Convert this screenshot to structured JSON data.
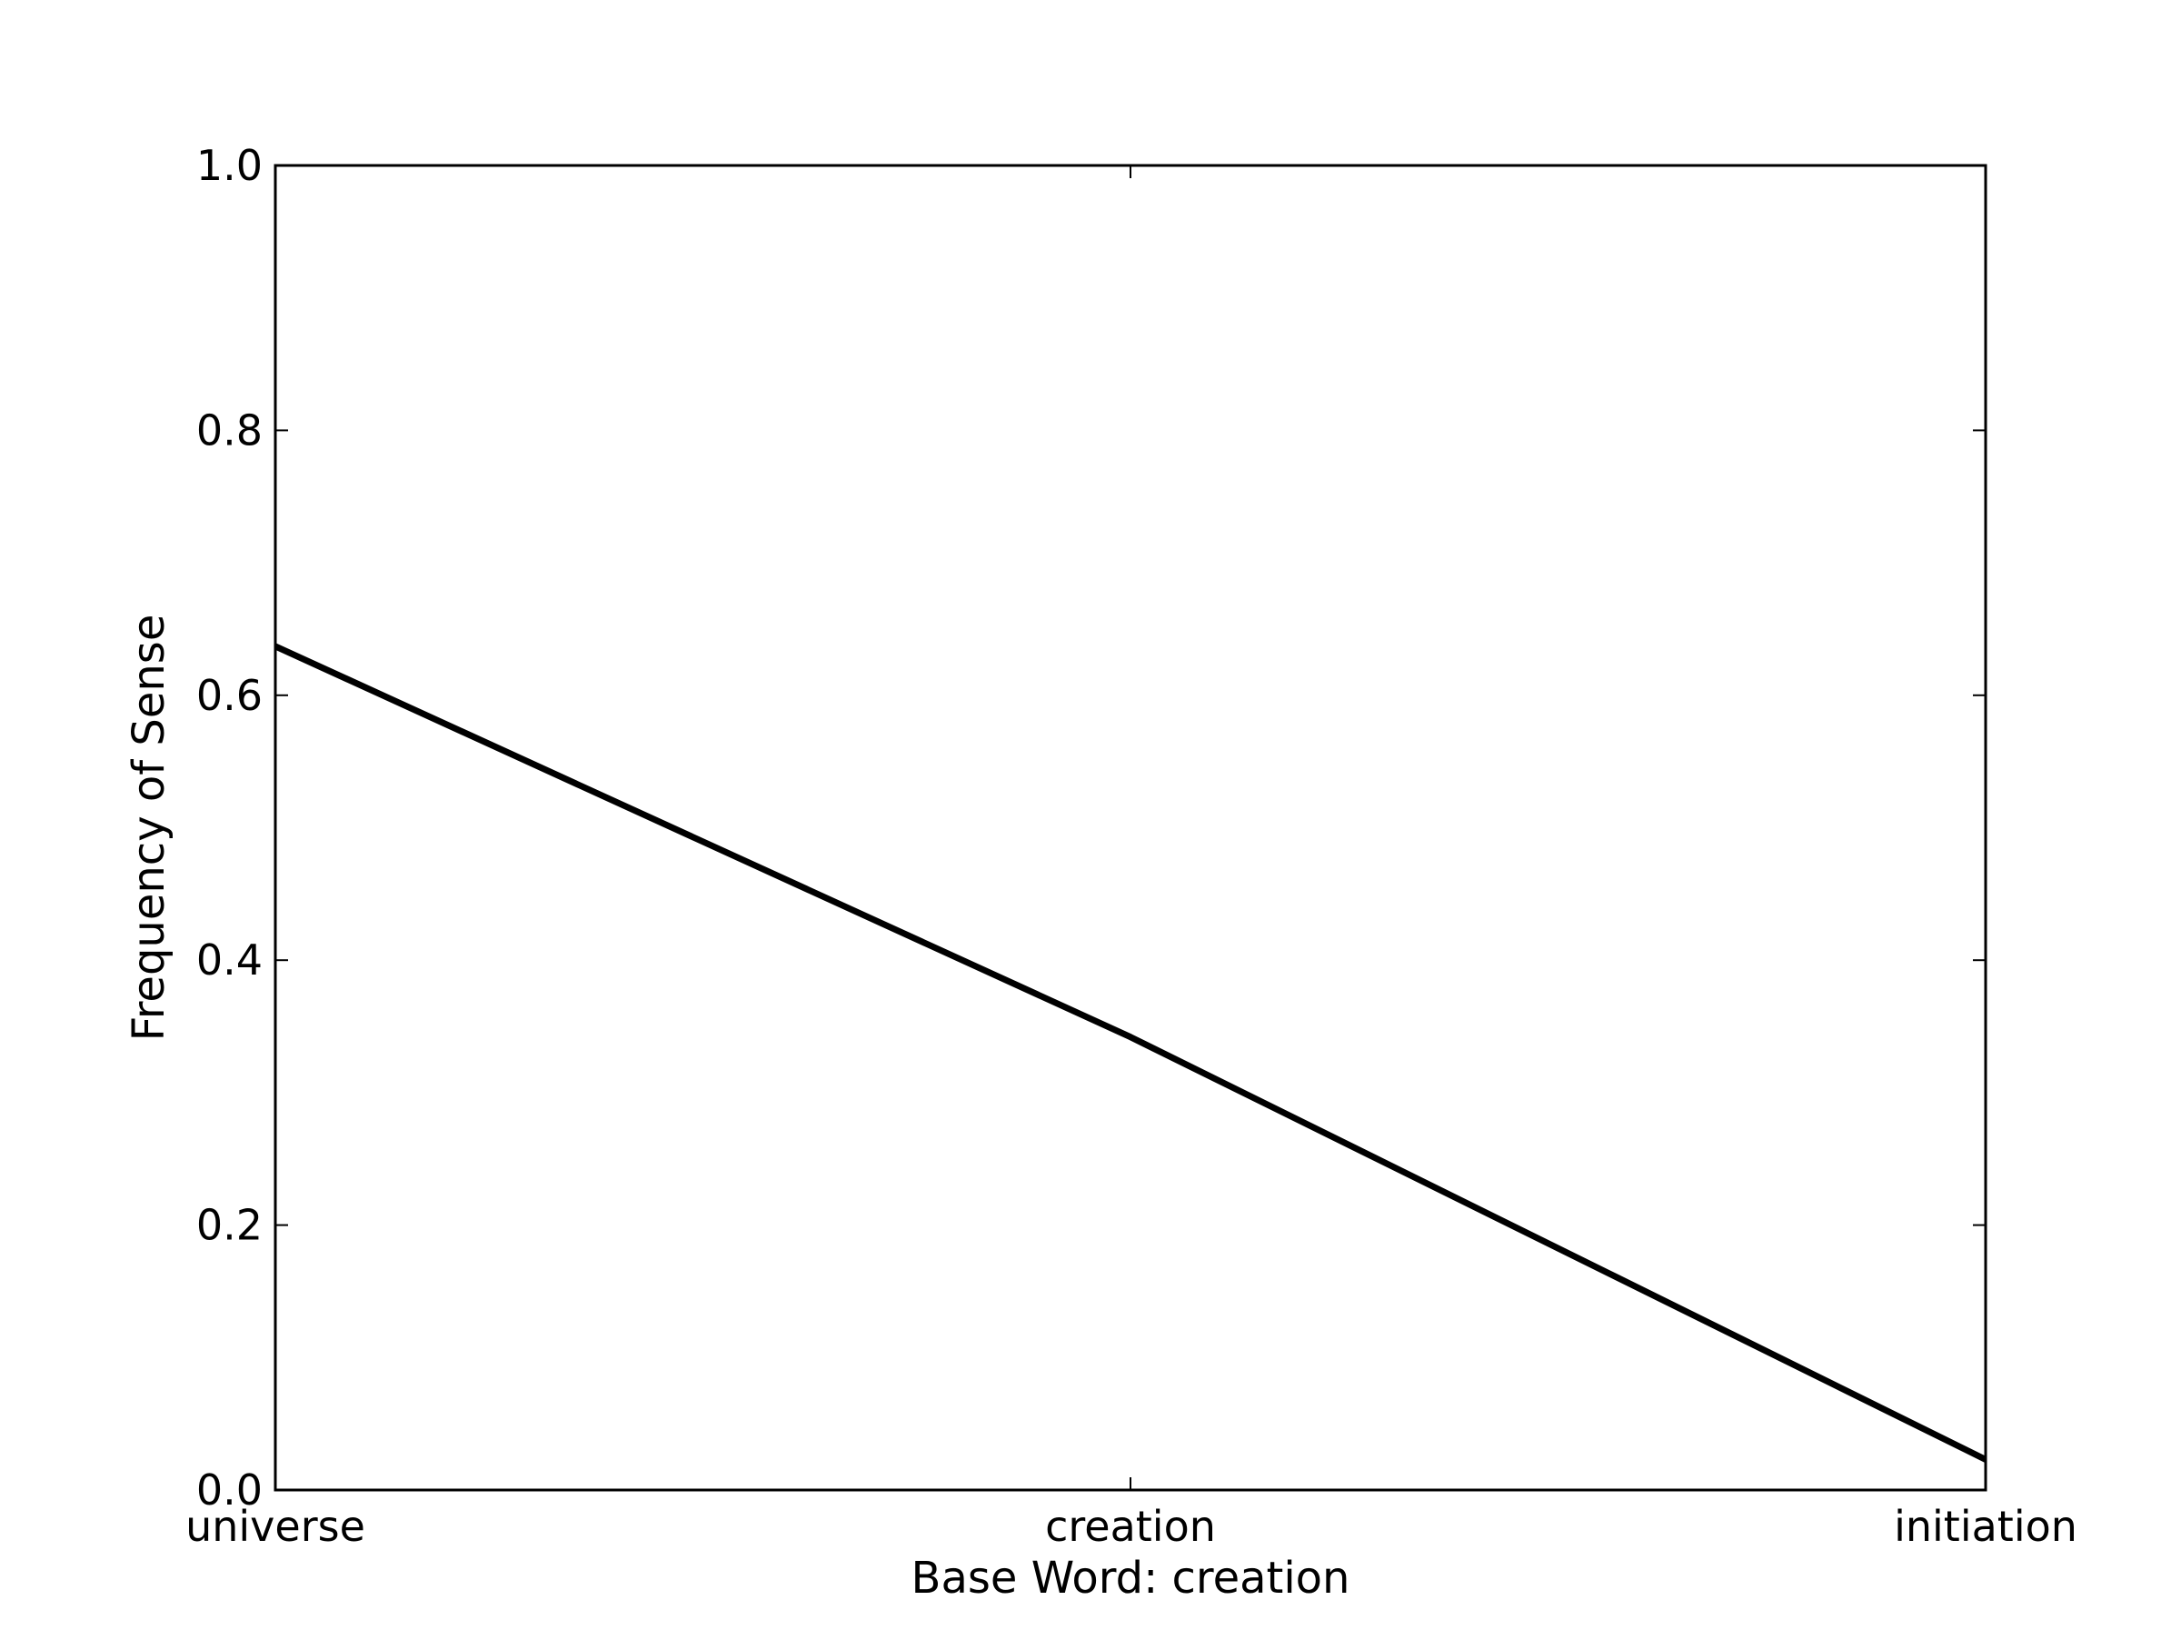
{
  "chart_data": {
    "type": "line",
    "title": "",
    "xlabel": "Base Word: creation",
    "ylabel": "Frequency of Sense",
    "categories": [
      "universe",
      "creation",
      "initiation"
    ],
    "series": [
      {
        "values": [
          0.637,
          0.342,
          0.023
        ]
      }
    ],
    "ylim": [
      0.0,
      1.0
    ],
    "yticks": [
      "0.0",
      "0.2",
      "0.4",
      "0.6",
      "0.8",
      "1.0"
    ],
    "grid": false,
    "legend": "none",
    "line_color": "#000000",
    "axes_color": "#000000",
    "background": "#ffffff"
  }
}
